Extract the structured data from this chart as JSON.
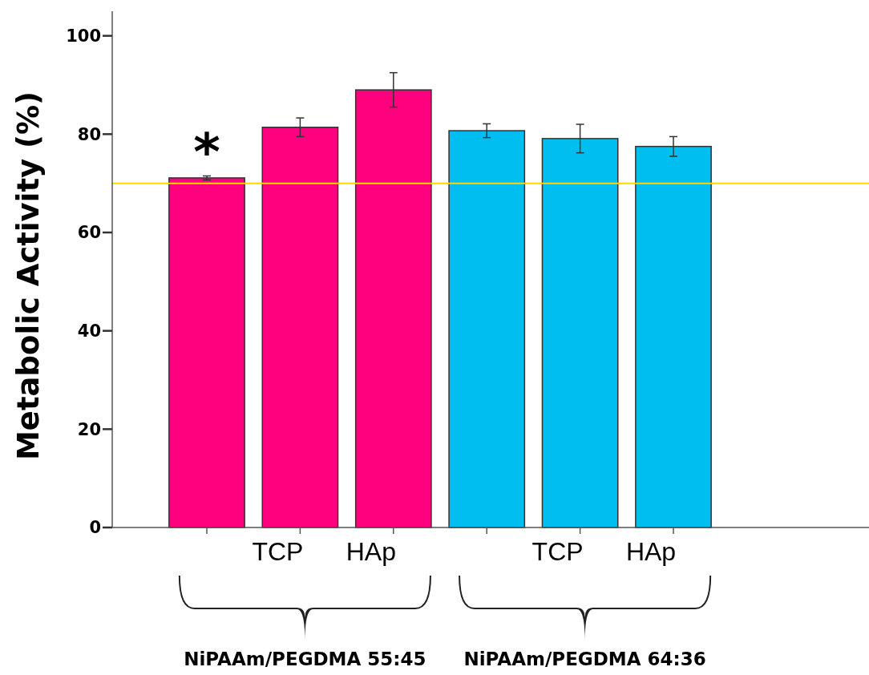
{
  "chart_data": {
    "type": "bar",
    "ylabel": "Metabolic Activity (%)",
    "categories": [
      null,
      "TCP",
      "HAp",
      null,
      "TCP",
      "HAp"
    ],
    "values": [
      71.1,
      81.4,
      89.0,
      80.7,
      79.1,
      77.5
    ],
    "errors": [
      0.4,
      1.9,
      3.5,
      1.4,
      2.9,
      2.0
    ],
    "colors": [
      "#ff007f",
      "#ff007f",
      "#ff007f",
      "#00bff0",
      "#00bff0",
      "#00bff0"
    ],
    "ylim": [
      0,
      105
    ],
    "yticks": [
      0,
      20,
      40,
      60,
      80,
      100
    ],
    "ref_lines": [
      {
        "axis": "y",
        "value": 70,
        "label": null,
        "color": "#ffd700"
      }
    ],
    "annotations": [
      "*",
      "NiPAAm/PEGDMA 55:45",
      "NiPAAm/PEGDMA 64:36"
    ],
    "grid": false
  }
}
